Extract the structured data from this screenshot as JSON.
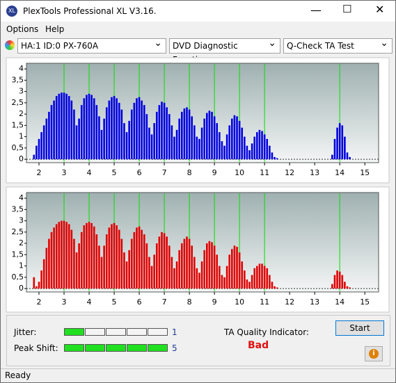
{
  "window": {
    "title": "PlexTools Professional XL V3.16.",
    "menu": [
      "Options",
      "Help"
    ],
    "drive": "HA:1 ID:0  PX-760A",
    "function": "DVD Diagnostic Functions",
    "test": "Q-Check TA Test",
    "jitter_label": "Jitter:",
    "jitter": 1,
    "peak_shift_label": "Peak Shift:",
    "peak_shift": 5,
    "quality_label": "TA Quality Indicator:",
    "quality": "Bad",
    "start": "Start",
    "status": "Ready"
  },
  "chart_data": [
    {
      "type": "bar",
      "color": "#0000e0",
      "marker_color": "#00e000",
      "markers": [
        3,
        4,
        5,
        6,
        7,
        8,
        9,
        10,
        11,
        14
      ],
      "xlim": [
        1.5,
        15.55
      ],
      "xticks": [
        2,
        3,
        4,
        5,
        6,
        7,
        8,
        9,
        10,
        11,
        12,
        13,
        14,
        15
      ],
      "ylim": [
        -0.15,
        4.25
      ],
      "yticks": [
        0,
        {
          "value": 0.5,
          "label": "0,5"
        },
        1,
        {
          "value": 1.5,
          "label": "1,5"
        },
        2,
        {
          "value": 2.5,
          "label": "2,5"
        },
        3,
        {
          "value": 3.5,
          "label": "3,5"
        },
        4
      ],
      "x": [
        1.8,
        1.9,
        2.0,
        2.1,
        2.2,
        2.3,
        2.4,
        2.5,
        2.6,
        2.7,
        2.8,
        2.9,
        3.0,
        3.1,
        3.2,
        3.3,
        3.4,
        3.5,
        3.6,
        3.7,
        3.8,
        3.9,
        4.0,
        4.1,
        4.2,
        4.3,
        4.4,
        4.5,
        4.6,
        4.7,
        4.8,
        4.9,
        5.0,
        5.1,
        5.2,
        5.3,
        5.4,
        5.5,
        5.6,
        5.7,
        5.8,
        5.9,
        6.0,
        6.1,
        6.2,
        6.3,
        6.4,
        6.5,
        6.6,
        6.7,
        6.8,
        6.9,
        7.0,
        7.1,
        7.2,
        7.3,
        7.4,
        7.5,
        7.6,
        7.7,
        7.8,
        7.9,
        8.0,
        8.1,
        8.2,
        8.3,
        8.4,
        8.5,
        8.6,
        8.7,
        8.8,
        8.9,
        9.0,
        9.1,
        9.2,
        9.3,
        9.4,
        9.5,
        9.6,
        9.7,
        9.8,
        9.9,
        10.0,
        10.1,
        10.2,
        10.3,
        10.4,
        10.5,
        10.6,
        10.7,
        10.8,
        10.9,
        11.0,
        11.1,
        11.2,
        11.3,
        11.4,
        11.5,
        13.7,
        13.8,
        13.9,
        14.0,
        14.1,
        14.2,
        14.3,
        14.4
      ],
      "values": [
        0.2,
        0.6,
        0.9,
        1.2,
        1.5,
        1.8,
        2.1,
        2.4,
        2.6,
        2.8,
        2.9,
        2.95,
        2.95,
        2.9,
        2.8,
        2.6,
        2.2,
        1.5,
        1.8,
        2.4,
        2.7,
        2.85,
        2.9,
        2.85,
        2.7,
        2.4,
        1.9,
        1.3,
        1.8,
        2.3,
        2.6,
        2.75,
        2.8,
        2.7,
        2.5,
        2.2,
        1.6,
        1.2,
        1.7,
        2.2,
        2.5,
        2.7,
        2.75,
        2.6,
        2.4,
        2.0,
        1.4,
        1.1,
        1.6,
        2.1,
        2.4,
        2.55,
        2.5,
        2.3,
        2.0,
        1.5,
        1.0,
        1.3,
        1.8,
        2.1,
        2.25,
        2.3,
        2.2,
        1.9,
        1.5,
        1.0,
        0.9,
        1.4,
        1.8,
        2.05,
        2.15,
        2.1,
        1.9,
        1.6,
        1.2,
        0.8,
        0.6,
        1.1,
        1.5,
        1.8,
        1.95,
        1.9,
        1.7,
        1.4,
        1.0,
        0.6,
        0.4,
        0.7,
        1.0,
        1.2,
        1.3,
        1.25,
        1.1,
        0.9,
        0.6,
        0.3,
        0.1,
        0.05,
        0.2,
        0.9,
        1.4,
        1.6,
        1.5,
        1.0,
        0.3,
        0.1
      ]
    },
    {
      "type": "bar",
      "color": "#e00000",
      "marker_color": "#00e000",
      "markers": [
        3,
        4,
        5,
        6,
        7,
        8,
        9,
        10,
        11,
        14
      ],
      "xlim": [
        1.5,
        15.55
      ],
      "xticks": [
        2,
        3,
        4,
        5,
        6,
        7,
        8,
        9,
        10,
        11,
        12,
        13,
        14,
        15
      ],
      "ylim": [
        -0.15,
        4.25
      ],
      "yticks": [
        0,
        {
          "value": 0.5,
          "label": "0,5"
        },
        1,
        {
          "value": 1.5,
          "label": "1,5"
        },
        2,
        {
          "value": 2.5,
          "label": "2,5"
        },
        3,
        {
          "value": 3.5,
          "label": "3,5"
        },
        4
      ],
      "x": [
        1.8,
        1.9,
        2.0,
        2.1,
        2.2,
        2.3,
        2.4,
        2.5,
        2.6,
        2.7,
        2.8,
        2.9,
        3.0,
        3.1,
        3.2,
        3.3,
        3.4,
        3.5,
        3.6,
        3.7,
        3.8,
        3.9,
        4.0,
        4.1,
        4.2,
        4.3,
        4.4,
        4.5,
        4.6,
        4.7,
        4.8,
        4.9,
        5.0,
        5.1,
        5.2,
        5.3,
        5.4,
        5.5,
        5.6,
        5.7,
        5.8,
        5.9,
        6.0,
        6.1,
        6.2,
        6.3,
        6.4,
        6.5,
        6.6,
        6.7,
        6.8,
        6.9,
        7.0,
        7.1,
        7.2,
        7.3,
        7.4,
        7.5,
        7.6,
        7.7,
        7.8,
        7.9,
        8.0,
        8.1,
        8.2,
        8.3,
        8.4,
        8.5,
        8.6,
        8.7,
        8.8,
        8.9,
        9.0,
        9.1,
        9.2,
        9.3,
        9.4,
        9.5,
        9.6,
        9.7,
        9.8,
        9.9,
        10.0,
        10.1,
        10.2,
        10.3,
        10.4,
        10.5,
        10.6,
        10.7,
        10.8,
        10.9,
        11.0,
        11.1,
        11.2,
        11.3,
        11.4,
        11.5,
        13.7,
        13.8,
        13.9,
        14.0,
        14.1,
        14.2,
        14.3,
        14.4
      ],
      "values": [
        0.5,
        0.1,
        0.3,
        0.8,
        1.3,
        1.8,
        2.2,
        2.5,
        2.7,
        2.85,
        2.95,
        3.0,
        3.0,
        2.95,
        2.85,
        2.6,
        2.2,
        1.6,
        2.0,
        2.5,
        2.8,
        2.9,
        2.95,
        2.9,
        2.75,
        2.4,
        1.9,
        1.4,
        1.9,
        2.4,
        2.7,
        2.85,
        2.9,
        2.8,
        2.6,
        2.2,
        1.6,
        1.2,
        1.7,
        2.2,
        2.5,
        2.7,
        2.75,
        2.6,
        2.4,
        2.0,
        1.4,
        1.0,
        1.5,
        2.0,
        2.3,
        2.5,
        2.45,
        2.3,
        1.9,
        1.4,
        0.9,
        1.2,
        1.7,
        2.0,
        2.2,
        2.3,
        2.2,
        1.9,
        1.4,
        0.9,
        0.7,
        1.2,
        1.7,
        2.0,
        2.1,
        2.05,
        1.9,
        1.5,
        1.0,
        0.6,
        0.5,
        1.0,
        1.5,
        1.75,
        1.9,
        1.85,
        1.6,
        1.2,
        0.8,
        0.4,
        0.3,
        0.6,
        0.9,
        1.0,
        1.1,
        1.1,
        1.0,
        0.9,
        0.6,
        0.3,
        0.1,
        0.05,
        0.2,
        0.6,
        0.8,
        0.75,
        0.6,
        0.3,
        0.1,
        0.05
      ]
    }
  ]
}
